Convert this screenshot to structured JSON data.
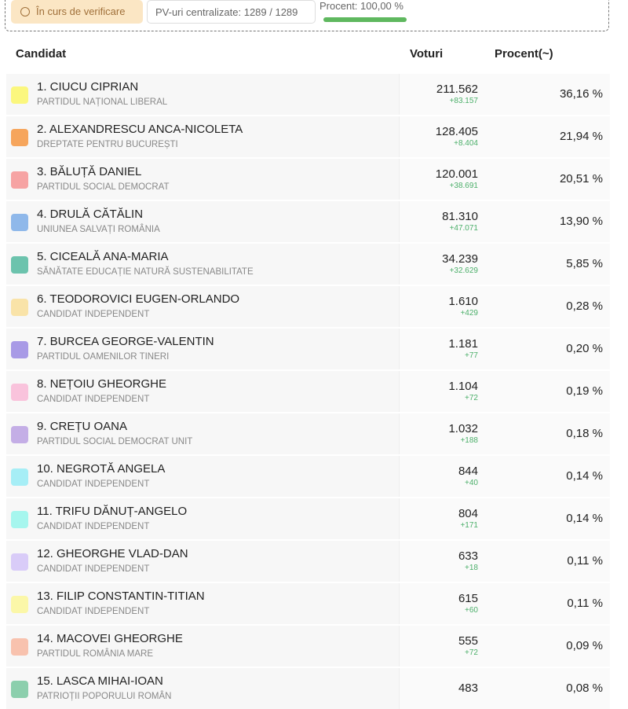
{
  "header": {
    "status": "În curs de verificare",
    "pv": "PV-uri centralizate: 1289 / 1289",
    "percent": "Procent: 100,00 %"
  },
  "table": {
    "columns": [
      "Candidat",
      "Voturi",
      "Procent(~)"
    ],
    "rows": [
      {
        "name": "1. CIUCU CIPRIAN",
        "party": "PARTIDUL NAȚIONAL LIBERAL",
        "votes": "211.562",
        "delta": "+83.157",
        "percent": "36,16 %",
        "color": "#fbf77e"
      },
      {
        "name": "2. ALEXANDRESCU ANCA-NICOLETA",
        "party": "DREPTATE PENTRU BUCUREȘTI",
        "votes": "128.405",
        "delta": "+8.404",
        "percent": "21,94 %",
        "color": "#f6a55c"
      },
      {
        "name": "3. BĂLUȚĂ DANIEL",
        "party": "PARTIDUL SOCIAL DEMOCRAT",
        "votes": "120.001",
        "delta": "+38.691",
        "percent": "20,51 %",
        "color": "#f6a3a3"
      },
      {
        "name": "4. DRULĂ CĂTĂLIN",
        "party": "UNIUNEA SALVAȚI ROMÂNIA",
        "votes": "81.310",
        "delta": "+47.071",
        "percent": "13,90 %",
        "color": "#8fb8ea"
      },
      {
        "name": "5. CICEALĂ ANA-MARIA",
        "party": "SĂNĂTATE EDUCAȚIE NATURĂ SUSTENABILITATE",
        "votes": "34.239",
        "delta": "+32.629",
        "percent": "5,85 %",
        "color": "#6cc3ad"
      },
      {
        "name": "6. TEODOROVICI EUGEN-ORLANDO",
        "party": "CANDIDAT INDEPENDENT",
        "votes": "1.610",
        "delta": "+429",
        "percent": "0,28 %",
        "color": "#f9e3a8"
      },
      {
        "name": "7. BURCEA GEORGE-VALENTIN",
        "party": "PARTIDUL OAMENILOR TINERI",
        "votes": "1.181",
        "delta": "+77",
        "percent": "0,20 %",
        "color": "#a89ae6"
      },
      {
        "name": "8. NEȚOIU GHEORGHE",
        "party": "CANDIDAT INDEPENDENT",
        "votes": "1.104",
        "delta": "+72",
        "percent": "0,19 %",
        "color": "#f9c3dc"
      },
      {
        "name": "9. CREȚU OANA",
        "party": "PARTIDUL SOCIAL DEMOCRAT UNIT",
        "votes": "1.032",
        "delta": "+188",
        "percent": "0,18 %",
        "color": "#c4aee6"
      },
      {
        "name": "10. NEGROTĂ ANGELA",
        "party": "CANDIDAT INDEPENDENT",
        "votes": "844",
        "delta": "+40",
        "percent": "0,14 %",
        "color": "#a6eef6"
      },
      {
        "name": "11. TRIFU DĂNUȚ-ANGELO",
        "party": "CANDIDAT INDEPENDENT",
        "votes": "804",
        "delta": "+171",
        "percent": "0,14 %",
        "color": "#a6f6ee"
      },
      {
        "name": "12. GHEORGHE VLAD-DAN",
        "party": "CANDIDAT INDEPENDENT",
        "votes": "633",
        "delta": "+18",
        "percent": "0,11 %",
        "color": "#d9ccf8"
      },
      {
        "name": "13. FILIP CONSTANTIN-TITIAN",
        "party": "CANDIDAT INDEPENDENT",
        "votes": "615",
        "delta": "+60",
        "percent": "0,11 %",
        "color": "#fbf7a8"
      },
      {
        "name": "14. MACOVEI GHEORGHE",
        "party": "PARTIDUL ROMÂNIA MARE",
        "votes": "555",
        "delta": "+72",
        "percent": "0,09 %",
        "color": "#f8c2ae"
      },
      {
        "name": "15. LASCA MIHAI-IOAN",
        "party": "PATRIOȚII POPORULUI ROMÂN",
        "votes": "483",
        "percent": "0,08 %",
        "color": "#8ccfad"
      }
    ]
  }
}
